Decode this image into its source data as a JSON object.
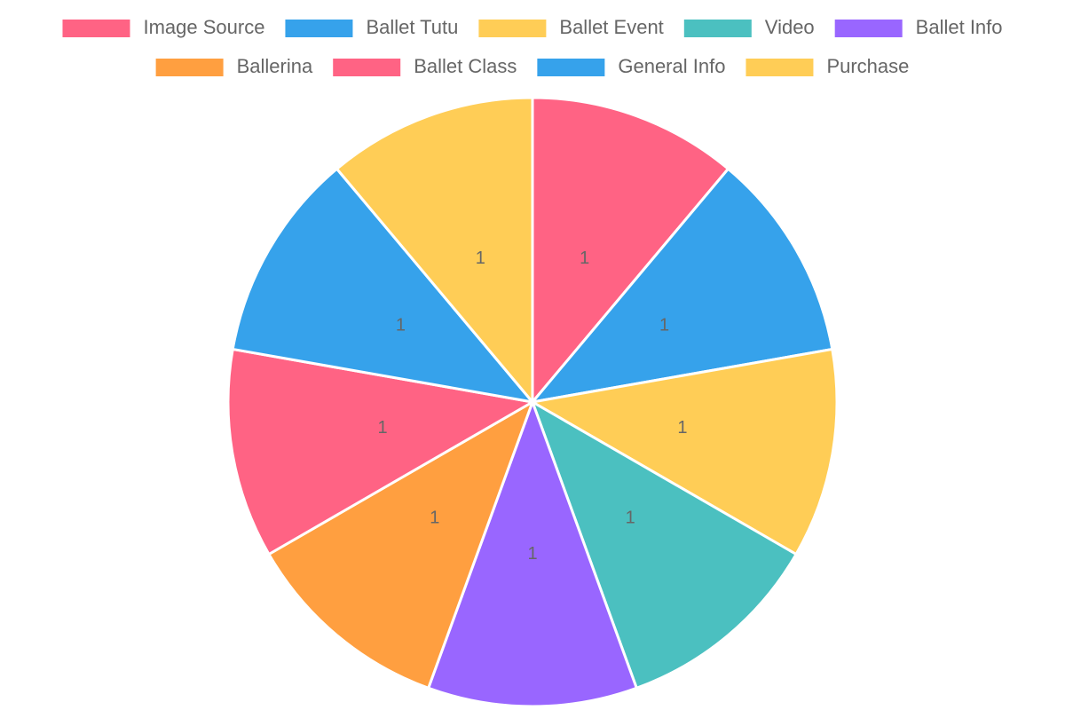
{
  "chart_data": {
    "type": "pie",
    "categories": [
      "Image Source",
      "Ballet Tutu",
      "Ballet Event",
      "Video",
      "Ballet Info",
      "Ballerina",
      "Ballet Class",
      "General Info",
      "Purchase"
    ],
    "values": [
      1,
      1,
      1,
      1,
      1,
      1,
      1,
      1,
      1
    ],
    "colors": [
      "#ff6384",
      "#36a2eb",
      "#ffcd56",
      "#4bc0c0",
      "#9966ff",
      "#ff9f40",
      "#ff6384",
      "#36a2eb",
      "#ffcd56"
    ],
    "legend": "top"
  }
}
